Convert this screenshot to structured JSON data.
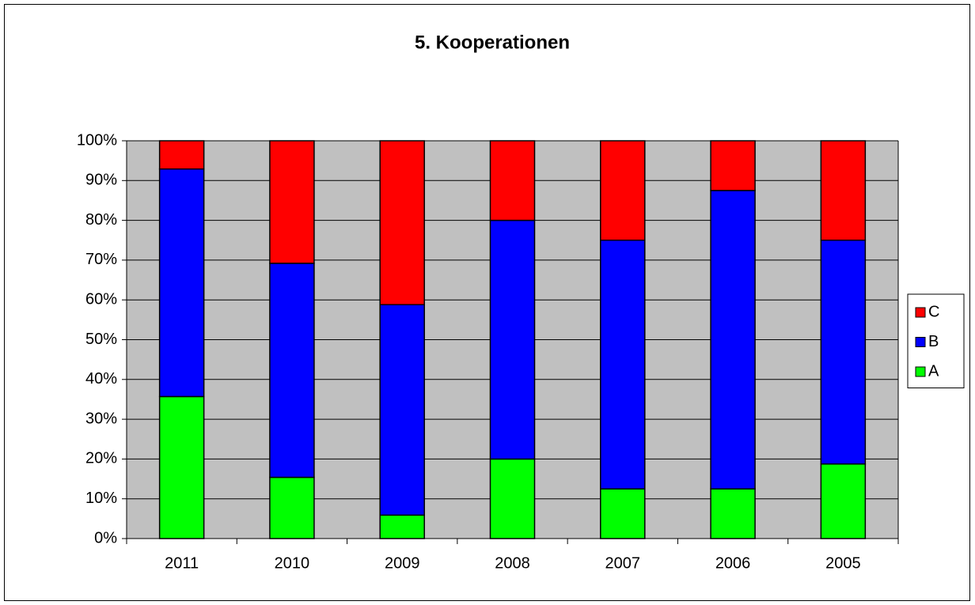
{
  "chart_data": {
    "type": "stacked_bar",
    "title": "5. Kooperationen",
    "categories": [
      "2011",
      "2010",
      "2009",
      "2008",
      "2007",
      "2006",
      "2005"
    ],
    "series": [
      {
        "name": "A",
        "color": "#00ff00",
        "values": [
          35.7,
          15.4,
          5.9,
          20,
          12.5,
          12.5,
          18.75
        ]
      },
      {
        "name": "B",
        "color": "#0000ff",
        "values": [
          57.2,
          53.8,
          52.9,
          60,
          62.5,
          75,
          56.25
        ]
      },
      {
        "name": "C",
        "color": "#ff0000",
        "values": [
          7.1,
          30.8,
          41.2,
          20,
          25,
          12.5,
          25
        ]
      }
    ],
    "ylim": [
      0,
      100
    ],
    "yticks": [
      {
        "value": 0,
        "label": "0%"
      },
      {
        "value": 10,
        "label": "10%"
      },
      {
        "value": 20,
        "label": "20%"
      },
      {
        "value": 30,
        "label": "30%"
      },
      {
        "value": 40,
        "label": "40%"
      },
      {
        "value": 50,
        "label": "50%"
      },
      {
        "value": 60,
        "label": "60%"
      },
      {
        "value": 70,
        "label": "70%"
      },
      {
        "value": 80,
        "label": "80%"
      },
      {
        "value": 90,
        "label": "90%"
      },
      {
        "value": 100,
        "label": "100%"
      }
    ],
    "grid": true,
    "legend": "right"
  }
}
